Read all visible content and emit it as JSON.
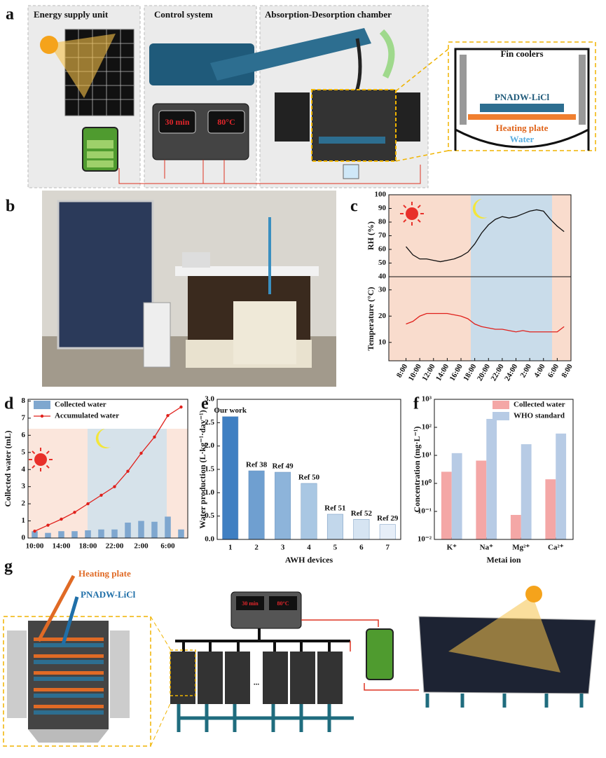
{
  "panel_labels": [
    "a",
    "b",
    "c",
    "d",
    "e",
    "f",
    "g"
  ],
  "diagram_a": {
    "sections": [
      "Energy supply unit",
      "Control system",
      "Absorption-Desorption chamber"
    ],
    "display": [
      "30 min",
      "80°C"
    ],
    "inset": {
      "fin": "Fin coolers",
      "material": "PNADW-LiCl",
      "heater": "Heating plate",
      "water": "Water"
    }
  },
  "diagram_g": {
    "heater": "Heating plate",
    "material": "PNADW-LiCl",
    "display": [
      "30 min",
      "80°C"
    ],
    "ellipsis": "..."
  },
  "chart_data": [
    {
      "type": "line",
      "ylabel": "RH (%)",
      "xlim": [
        -2.5,
        24
      ],
      "ylim": [
        40,
        100
      ],
      "yticks": [
        40,
        50,
        60,
        70,
        80,
        90,
        100
      ],
      "x": [
        0,
        1,
        2,
        3,
        4,
        5,
        6,
        7,
        8,
        9,
        10,
        11,
        12,
        13,
        14,
        15,
        16,
        17,
        18,
        19,
        20,
        21,
        22,
        23
      ],
      "series": [
        {
          "color": "#111111",
          "values": [
            62,
            56,
            53,
            53,
            52,
            51,
            52,
            53,
            55,
            58,
            64,
            72,
            78,
            82,
            84,
            83,
            84,
            86,
            88,
            89,
            88,
            82,
            77,
            73
          ]
        }
      ]
    },
    {
      "type": "line",
      "ylabel": "Temperature (°C)",
      "xlim": [
        -2.5,
        24
      ],
      "ylim": [
        3,
        35
      ],
      "yticks": [
        10,
        20,
        30
      ],
      "xticks": [
        {
          "value": 0,
          "label": "8:00"
        },
        {
          "value": 2,
          "label": "10:00"
        },
        {
          "value": 4,
          "label": "12:00"
        },
        {
          "value": 6,
          "label": "14:00"
        },
        {
          "value": 8,
          "label": "16:00"
        },
        {
          "value": 10,
          "label": "18:00"
        },
        {
          "value": 12,
          "label": "20:00"
        },
        {
          "value": 14,
          "label": "22:00"
        },
        {
          "value": 16,
          "label": "24:00"
        },
        {
          "value": 18,
          "label": "2:00"
        },
        {
          "value": 20,
          "label": "4:00"
        },
        {
          "value": 22,
          "label": "6:00"
        },
        {
          "value": 24,
          "label": "8:00"
        }
      ],
      "x": [
        0,
        1,
        2,
        3,
        4,
        5,
        6,
        7,
        8,
        9,
        10,
        11,
        12,
        13,
        14,
        15,
        16,
        17,
        18,
        19,
        20,
        21,
        22,
        23
      ],
      "series": [
        {
          "color": "#e0201b",
          "values": [
            17,
            18,
            20,
            21,
            21,
            21,
            21,
            20.5,
            20,
            19,
            17,
            16,
            15.5,
            15,
            15,
            14.5,
            14,
            14.5,
            14,
            14,
            14,
            14,
            14,
            16
          ]
        }
      ]
    },
    {
      "type": "combo",
      "ylabel": "Collected water (mL)",
      "ylim": [
        0,
        8.1
      ],
      "yticks": [
        0,
        1,
        2,
        3,
        4,
        5,
        6,
        7,
        8
      ],
      "categories": [
        "10:00",
        null,
        "14:00",
        null,
        "18:00",
        null,
        "22:00",
        null,
        "2:00",
        null,
        "6:00",
        null
      ],
      "legend": "upper left",
      "series": [
        {
          "name": "Collected water",
          "kind": "bar",
          "color": "#7fa7cf",
          "values": [
            0.4,
            0.3,
            0.4,
            0.4,
            0.45,
            0.5,
            0.5,
            0.9,
            1.0,
            0.95,
            1.25,
            0.5
          ]
        },
        {
          "name": "Accumulated water",
          "kind": "line",
          "color": "#e0201b",
          "values": [
            0.4,
            0.75,
            1.1,
            1.5,
            2.0,
            2.5,
            3.0,
            3.9,
            4.95,
            5.9,
            7.15,
            7.65
          ]
        }
      ]
    },
    {
      "type": "bar",
      "ylabel": "Water production (L·kg⁻¹·day⁻¹)",
      "xlabel": "AWH devices",
      "ylim": [
        0,
        3.0
      ],
      "yticks": [
        {
          "value": 0,
          "label": "0.0"
        },
        0.5,
        {
          "value": 1,
          "label": "1.0"
        },
        1.5,
        {
          "value": 2,
          "label": "2.0"
        },
        2.5,
        {
          "value": 3,
          "label": "3.0"
        }
      ],
      "categories": [
        "1",
        "2",
        "3",
        "4",
        "5",
        "6",
        "7"
      ],
      "values": [
        2.63,
        1.47,
        1.44,
        1.2,
        0.54,
        0.43,
        0.32
      ],
      "bar_labels": [
        "Our work",
        "Ref 38",
        "Ref 49",
        "Ref 50",
        "Ref 51",
        "Ref 52",
        "Ref 29"
      ],
      "colors": [
        "#3f7fc2",
        "#6f9fd0",
        "#8db4da",
        "#a9c7e3",
        "#c2d7eb",
        "#d6e4f2",
        "#e6eef8"
      ]
    },
    {
      "type": "bar",
      "ylabel": "Concentration (mg·L⁻¹)",
      "xlabel": "Metai ion",
      "log_y": true,
      "ylim": [
        0.01,
        1000
      ],
      "yticks": [
        {
          "value": 0.01,
          "label": "10⁻²"
        },
        {
          "value": 0.1,
          "label": "10⁻¹"
        },
        {
          "value": 1,
          "label": "10⁰"
        },
        {
          "value": 10,
          "label": "10¹"
        },
        {
          "value": 100,
          "label": "10²"
        },
        {
          "value": 1000,
          "label": "10³"
        }
      ],
      "categories": [
        "K⁺",
        "Na⁺",
        "Mg²⁺",
        "Ca²⁺"
      ],
      "legend": "upper right",
      "series": [
        {
          "name": "Collected water",
          "color": "#f4a7a6",
          "values": [
            2.6,
            6.5,
            0.075,
            1.4
          ]
        },
        {
          "name": "WHO standard",
          "color": "#b7cbe5",
          "values": [
            12,
            200,
            25,
            60
          ]
        }
      ]
    }
  ]
}
